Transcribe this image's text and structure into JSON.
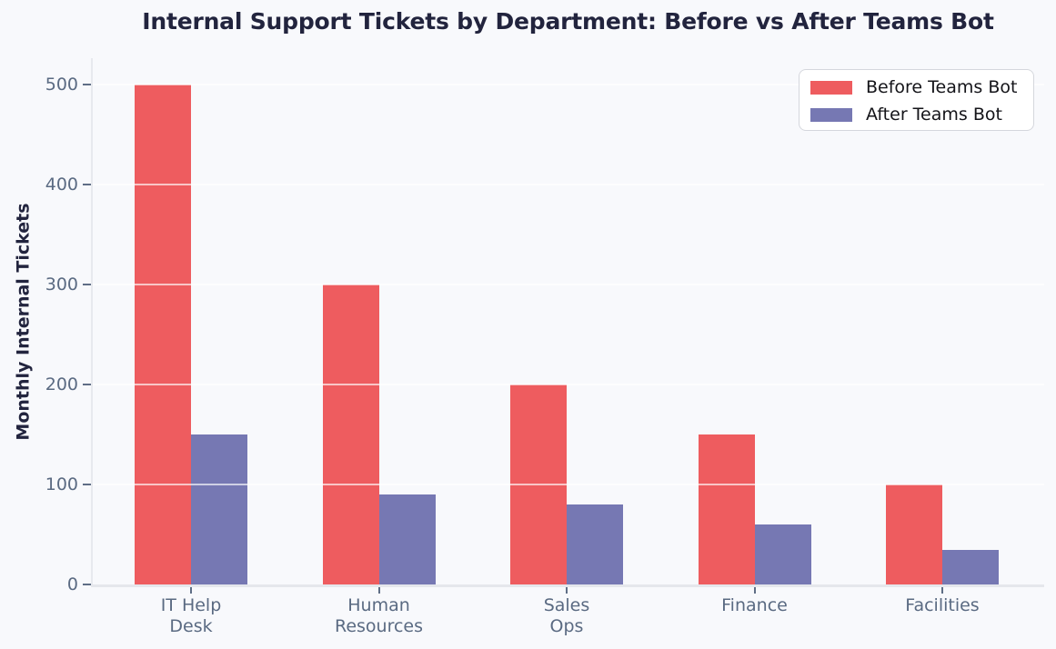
{
  "chart_data": {
    "type": "bar",
    "title": "Internal Support Tickets by Department: Before vs After Teams Bot",
    "xlabel": "",
    "ylabel": "Monthly Internal Tickets",
    "categories": [
      "IT Help\nDesk",
      "Human\nResources",
      "Sales\nOps",
      "Finance",
      "Facilities"
    ],
    "series": [
      {
        "name": "Before Teams Bot",
        "color": "#ee5c5f",
        "values": [
          500,
          300,
          200,
          150,
          100
        ]
      },
      {
        "name": "After Teams Bot",
        "color": "#7678b3",
        "values": [
          150,
          90,
          80,
          60,
          35
        ]
      }
    ],
    "ylim": [
      0,
      500
    ],
    "yticks": [
      0,
      100,
      200,
      300,
      400,
      500
    ],
    "grid": true,
    "grid_color": "#ffffff",
    "legend_position": "upper right",
    "background_color": "#f8f9fc",
    "axis_color": "#e7e9ee",
    "tick_label_color": "#5a6a82",
    "title_color": "#22243e"
  }
}
